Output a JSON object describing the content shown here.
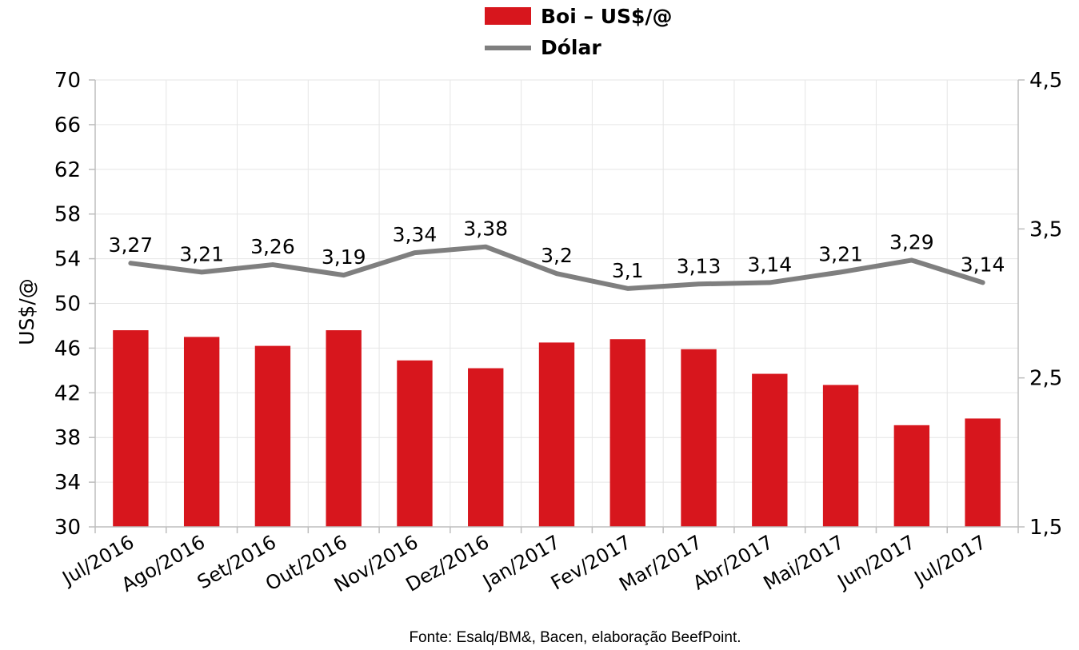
{
  "chart_data": {
    "type": "bar",
    "categories": [
      "Jul/2016",
      "Ago/2016",
      "Set/2016",
      "Out/2016",
      "Nov/2016",
      "Dez/2016",
      "Jan/2017",
      "Fev/2017",
      "Mar/2017",
      "Abr/2017",
      "Mai/2017",
      "Jun/2017",
      "Jul/2017"
    ],
    "series": [
      {
        "name": "Boi – US$/@",
        "type": "bar",
        "axis": "left",
        "color": "#d7161d",
        "values": [
          47.6,
          47.0,
          46.2,
          47.6,
          44.9,
          44.2,
          46.5,
          46.8,
          45.9,
          43.7,
          42.7,
          39.1,
          39.7
        ]
      },
      {
        "name": "Dólar",
        "type": "line",
        "axis": "right",
        "color": "#7f7f7f",
        "values": [
          3.27,
          3.21,
          3.26,
          3.19,
          3.34,
          3.38,
          3.2,
          3.1,
          3.13,
          3.14,
          3.21,
          3.29,
          3.14
        ],
        "labels": [
          "3,27",
          "3,21",
          "3,26",
          "3,19",
          "3,34",
          "3,38",
          "3,2",
          "3,1",
          "3,13",
          "3,14",
          "3,21",
          "3,29",
          "3,14"
        ]
      }
    ],
    "ylabel": "US$/@",
    "ylim": [
      30,
      70
    ],
    "yticks": [
      "30",
      "34",
      "38",
      "42",
      "46",
      "50",
      "54",
      "58",
      "62",
      "66",
      "70"
    ],
    "y2lim": [
      1.5,
      4.5
    ],
    "y2ticks": [
      "1,5",
      "2,5",
      "3,5",
      "4,5"
    ],
    "grid": true,
    "legend": "top-center",
    "source": "Fonte:  Esalq/BM&,  Bacen,  elaboração  BeefPoint."
  }
}
